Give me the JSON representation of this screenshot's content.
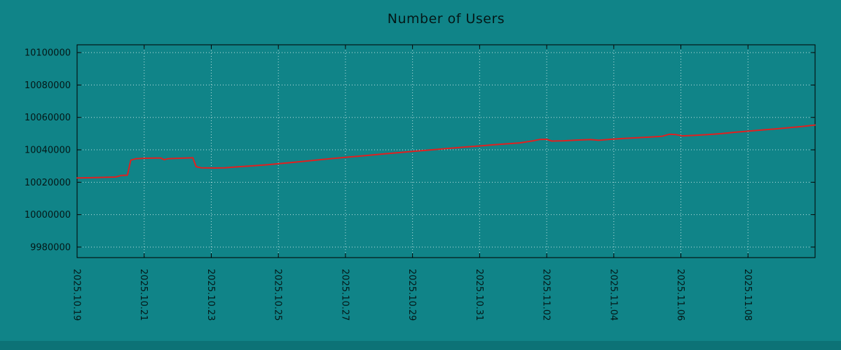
{
  "title": "Number of Users",
  "colors": {
    "background": "#108488",
    "footer_band": "#0c7276",
    "grid": "#dff3f3",
    "axis": "#000000",
    "line": "#e02020",
    "text": "#041717"
  },
  "chart_data": {
    "type": "line",
    "title": "Number of Users",
    "xlabel": "",
    "ylabel": "",
    "grid": true,
    "legend": "none",
    "xlim_days": [
      0,
      22
    ],
    "ylim": [
      9973500,
      10104800
    ],
    "y_ticks": [
      9980000,
      10000000,
      10020000,
      10040000,
      10060000,
      10080000,
      10100000
    ],
    "x_ticks": [
      {
        "label": "2025.10.19",
        "day": 0
      },
      {
        "label": "2025.10.21",
        "day": 2
      },
      {
        "label": "2025.10.23",
        "day": 4
      },
      {
        "label": "2025.10.25",
        "day": 6
      },
      {
        "label": "2025.10.27",
        "day": 8
      },
      {
        "label": "2025.10.29",
        "day": 10
      },
      {
        "label": "2025.10.31",
        "day": 12
      },
      {
        "label": "2025.11.02",
        "day": 14
      },
      {
        "label": "2025.11.04",
        "day": 16
      },
      {
        "label": "2025.11.06",
        "day": 18
      },
      {
        "label": "2025.11.08",
        "day": 20
      }
    ],
    "series": [
      {
        "name": "users",
        "color": "#e02020",
        "points": [
          [
            0.0,
            10022600
          ],
          [
            0.4,
            10022800
          ],
          [
            0.8,
            10023000
          ],
          [
            1.15,
            10023200
          ],
          [
            1.3,
            10024100
          ],
          [
            1.5,
            10024400
          ],
          [
            1.6,
            10033600
          ],
          [
            1.75,
            10034500
          ],
          [
            2.0,
            10034800
          ],
          [
            2.35,
            10034900
          ],
          [
            2.5,
            10034900
          ],
          [
            2.6,
            10033900
          ],
          [
            2.7,
            10034500
          ],
          [
            3.0,
            10034800
          ],
          [
            3.3,
            10035000
          ],
          [
            3.45,
            10035100
          ],
          [
            3.55,
            10029600
          ],
          [
            3.7,
            10028900
          ],
          [
            4.1,
            10028800
          ],
          [
            4.4,
            10028900
          ],
          [
            4.8,
            10029500
          ],
          [
            5.2,
            10030100
          ],
          [
            5.6,
            10030700
          ],
          [
            6.0,
            10031400
          ],
          [
            6.4,
            10032200
          ],
          [
            6.8,
            10033000
          ],
          [
            7.2,
            10033800
          ],
          [
            7.6,
            10034600
          ],
          [
            8.0,
            10035400
          ],
          [
            8.4,
            10036100
          ],
          [
            8.8,
            10036800
          ],
          [
            9.2,
            10037600
          ],
          [
            9.6,
            10038300
          ],
          [
            10.0,
            10039000
          ],
          [
            10.4,
            10039700
          ],
          [
            10.8,
            10040400
          ],
          [
            11.2,
            10041100
          ],
          [
            11.6,
            10041800
          ],
          [
            12.0,
            10042400
          ],
          [
            12.4,
            10043100
          ],
          [
            12.8,
            10043700
          ],
          [
            13.2,
            10044300
          ],
          [
            13.6,
            10045600
          ],
          [
            13.8,
            10046400
          ],
          [
            14.0,
            10046500
          ],
          [
            14.15,
            10045400
          ],
          [
            14.5,
            10045600
          ],
          [
            14.9,
            10046000
          ],
          [
            15.3,
            10046300
          ],
          [
            15.55,
            10045900
          ],
          [
            15.9,
            10046500
          ],
          [
            16.3,
            10047000
          ],
          [
            16.7,
            10047500
          ],
          [
            17.1,
            10047900
          ],
          [
            17.45,
            10048400
          ],
          [
            17.65,
            10049600
          ],
          [
            17.85,
            10049400
          ],
          [
            18.05,
            10048600
          ],
          [
            18.4,
            10048900
          ],
          [
            18.8,
            10049400
          ],
          [
            19.2,
            10050000
          ],
          [
            19.6,
            10050800
          ],
          [
            20.0,
            10051500
          ],
          [
            20.4,
            10052200
          ],
          [
            20.8,
            10052900
          ],
          [
            21.2,
            10053600
          ],
          [
            21.6,
            10054400
          ],
          [
            22.0,
            10055300
          ]
        ]
      }
    ]
  }
}
